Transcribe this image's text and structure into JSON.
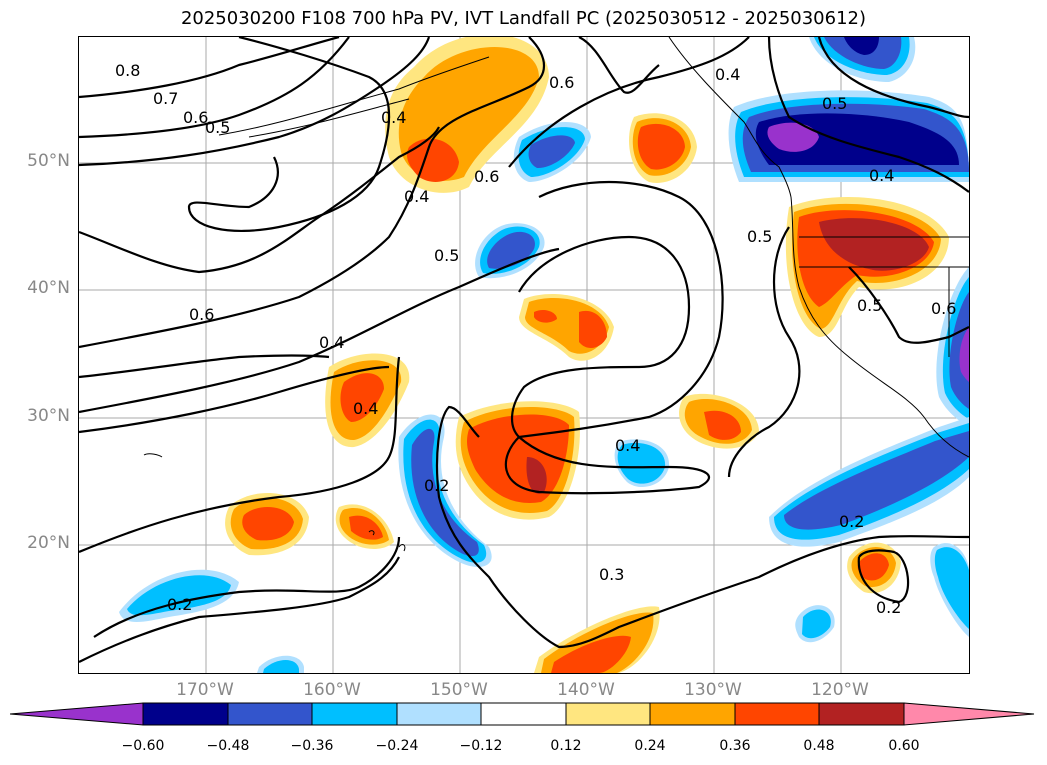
{
  "title": "2025030200 F108 700 hPa PV, IVT Landfall PC (2025030512 - 2025030612)",
  "lat_labels": [
    "50°N",
    "40°N",
    "30°N",
    "20°N"
  ],
  "lon_labels": [
    "170°W",
    "160°W",
    "150°W",
    "140°W",
    "130°W",
    "120°W"
  ],
  "colorbar": {
    "ticks": [
      "−0.60",
      "−0.48",
      "−0.36",
      "−0.24",
      "−0.12",
      "0.12",
      "0.24",
      "0.36",
      "0.48",
      "0.60"
    ],
    "colors": [
      "#9932CC",
      "#00008B",
      "#3355CC",
      "#00BFFF",
      "#B0E0FF",
      "#FFFFFF",
      "#FFE680",
      "#FFA500",
      "#FF4500",
      "#B22222",
      "#FF88AA"
    ]
  },
  "contour_labels": [
    "0.8",
    "0.7",
    "0.6",
    "0.5",
    "0.4",
    "0.6",
    "0.4",
    "0.5",
    "0.6",
    "0.4",
    "0.5",
    "0.6",
    "0.4",
    "0.5",
    "0.4",
    "0.5",
    "0.6",
    "0.4",
    "0.2",
    "0.4",
    "0.2",
    "0.3",
    "0.2",
    "0.2"
  ],
  "map_features": {
    "projection": "equirectangular",
    "lon_range": [
      -180,
      -110
    ],
    "lat_range": [
      10,
      60
    ],
    "gridlines": true,
    "coastlines": true
  }
}
